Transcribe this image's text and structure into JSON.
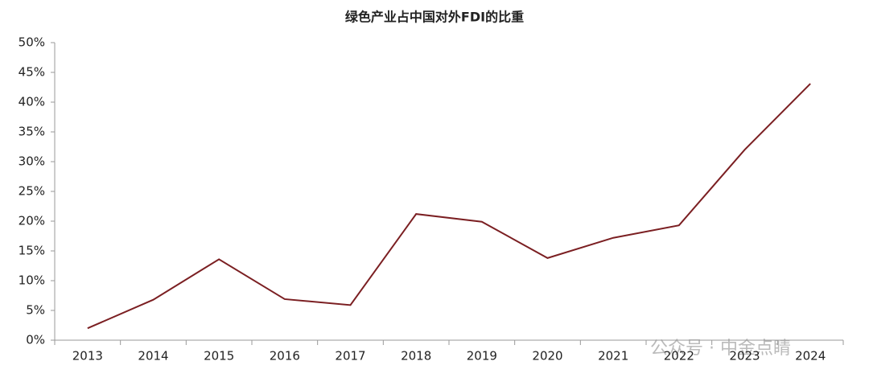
{
  "chart_data": {
    "type": "line",
    "title": "绿色产业占中国对外FDI的比重",
    "categories": [
      "2013",
      "2014",
      "2015",
      "2016",
      "2017",
      "2018",
      "2019",
      "2020",
      "2021",
      "2022",
      "2023",
      "2024"
    ],
    "series": [
      {
        "color": "#7b1f22",
        "values": [
          2.0,
          6.8,
          13.6,
          6.9,
          5.9,
          21.2,
          19.9,
          13.8,
          17.2,
          19.3,
          32.0,
          43.1
        ]
      }
    ],
    "ylim": [
      0,
      50
    ],
    "yticks": [
      {
        "value": 0,
        "label": "0%"
      },
      {
        "value": 5,
        "label": "5%"
      },
      {
        "value": 10,
        "label": "10%"
      },
      {
        "value": 15,
        "label": "15%"
      },
      {
        "value": 20,
        "label": "20%"
      },
      {
        "value": 25,
        "label": "25%"
      },
      {
        "value": 30,
        "label": "30%"
      },
      {
        "value": 35,
        "label": "35%"
      },
      {
        "value": 40,
        "label": "40%"
      },
      {
        "value": 45,
        "label": "45%"
      },
      {
        "value": 50,
        "label": "50%"
      }
    ],
    "grid": false,
    "watermark": "公众号 · 中金点睛"
  }
}
